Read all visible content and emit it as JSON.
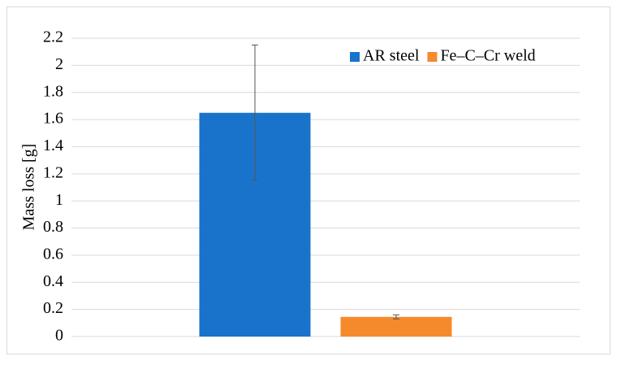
{
  "chart_data": {
    "type": "bar",
    "ylabel": "Mass loss [g]",
    "categories": [
      null
    ],
    "series": [
      {
        "name": "AR steel",
        "color": "#1a73cb",
        "values": [
          1.65
        ],
        "errors": [
          0.5
        ]
      },
      {
        "name": "Fe–C–Cr weld",
        "color": "#f58a2c",
        "values": [
          0.145
        ],
        "errors": [
          0.015
        ]
      }
    ],
    "ylim": [
      0,
      2.2
    ],
    "yticks": [
      0,
      0.2,
      0.4,
      0.6,
      0.8,
      1,
      1.2,
      1.4,
      1.6,
      1.8,
      2,
      2.2
    ],
    "grid": true,
    "legend": "top-right"
  }
}
